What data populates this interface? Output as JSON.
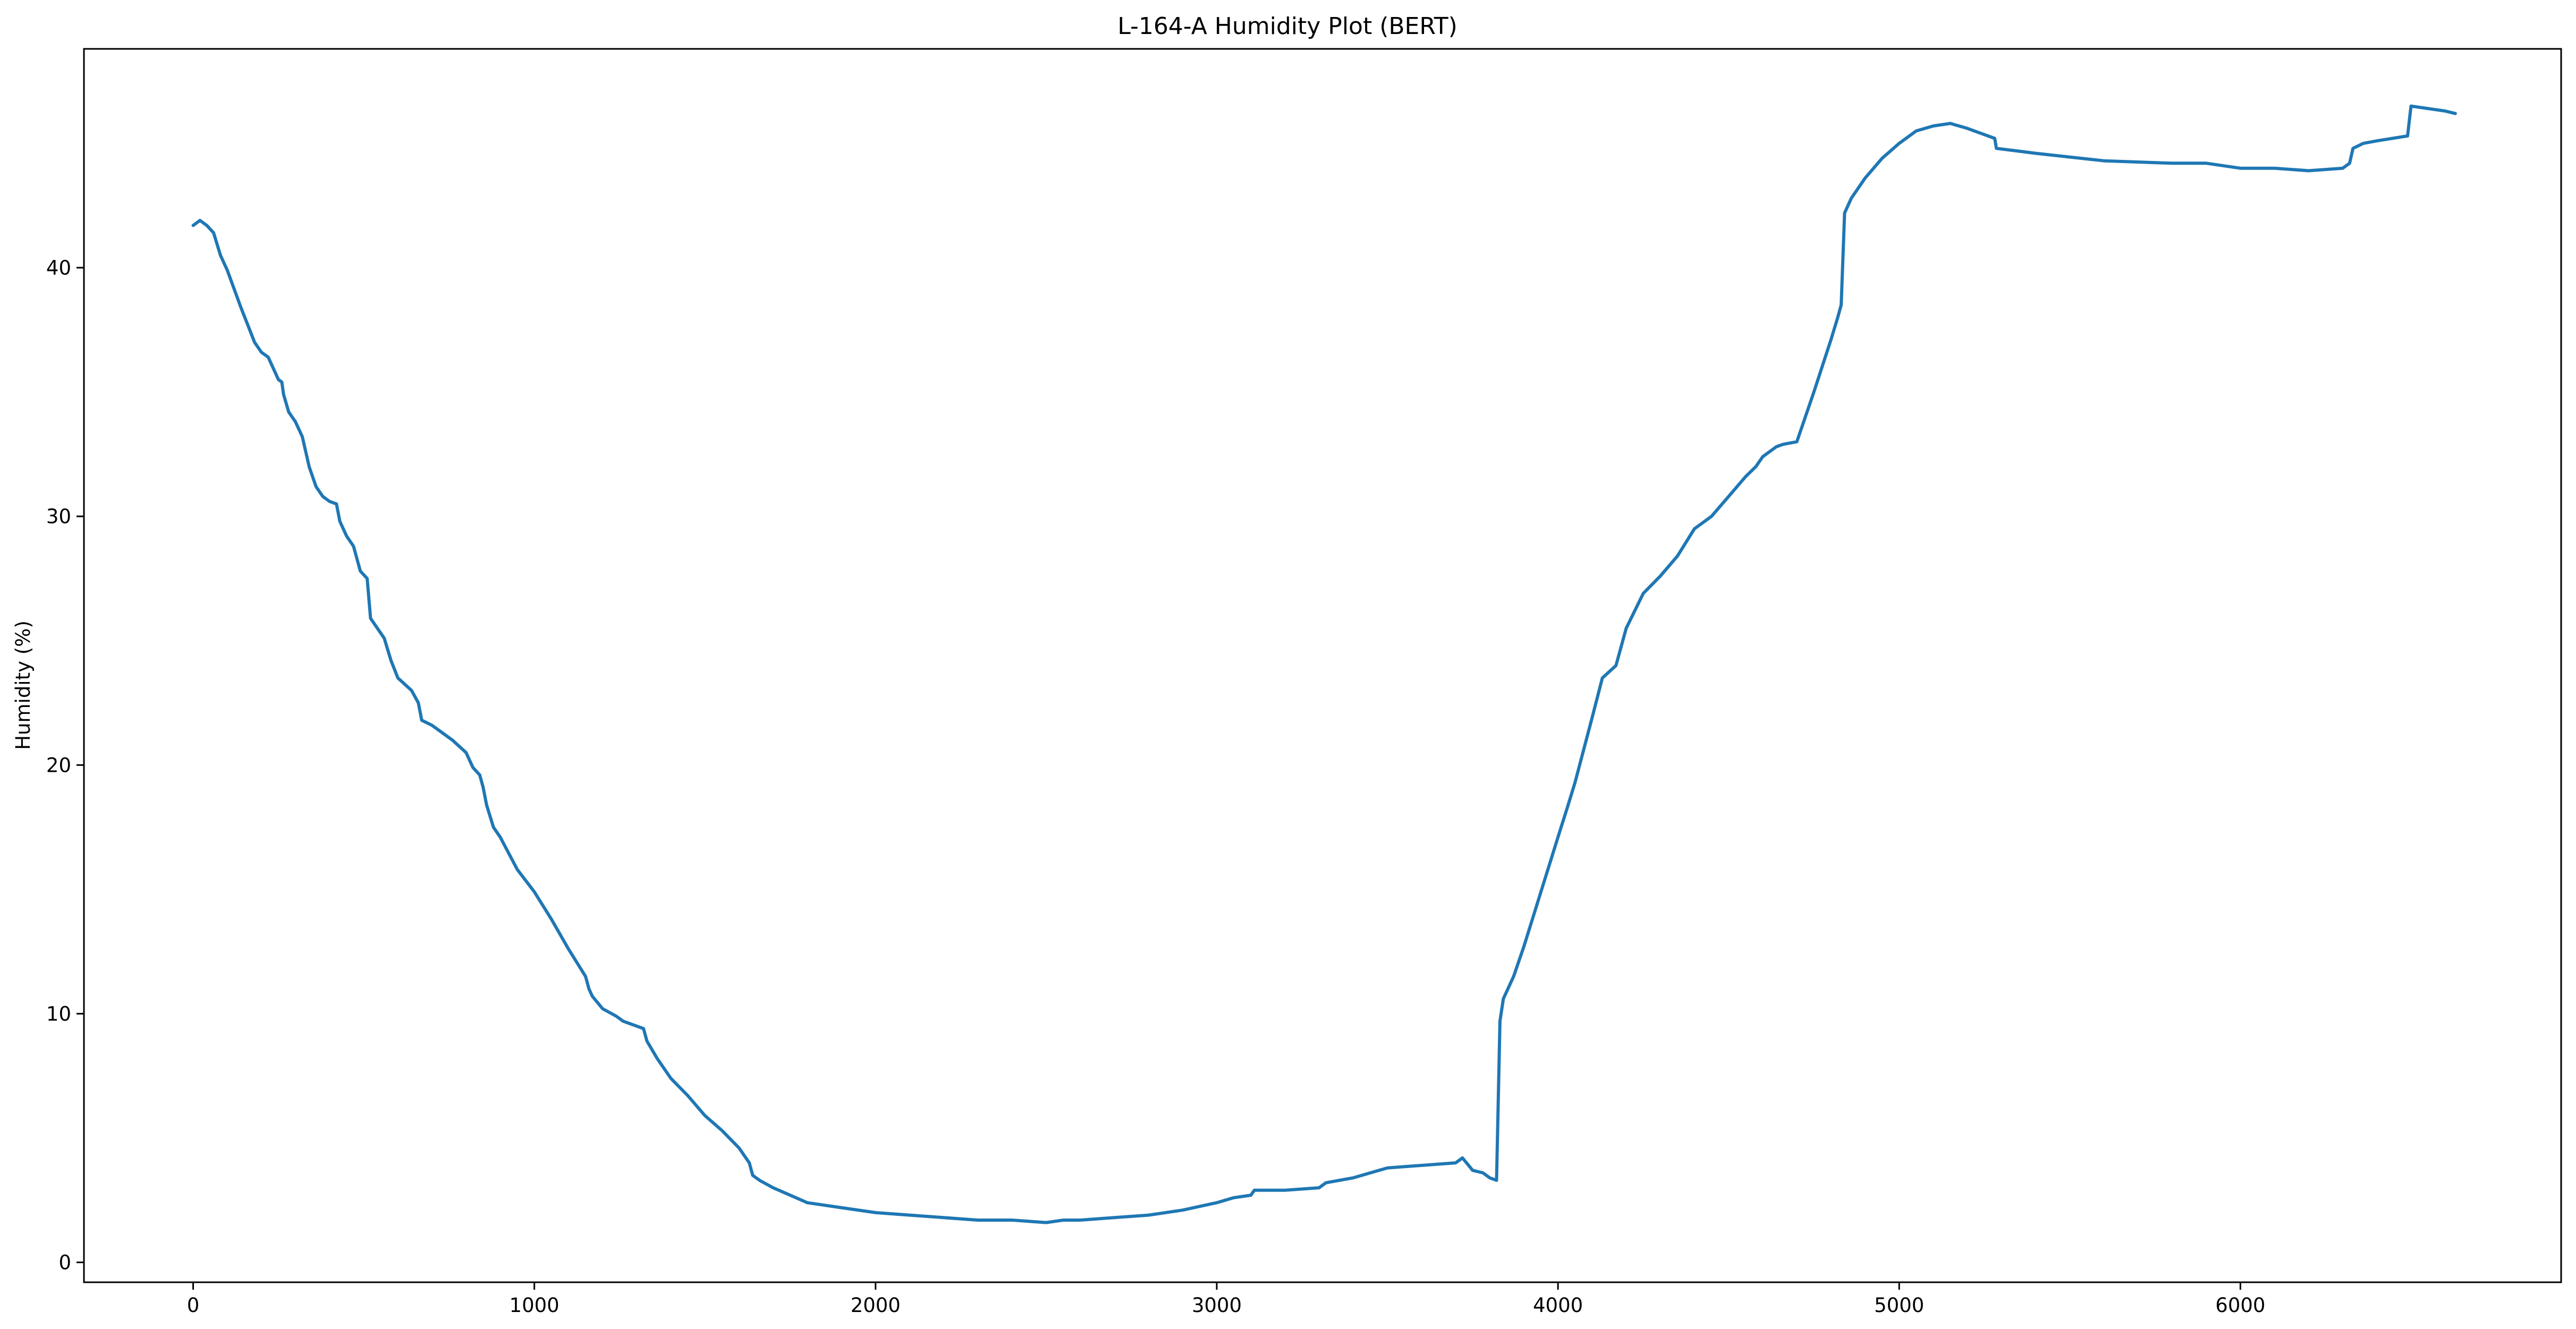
{
  "chart_data": {
    "type": "line",
    "title": "L-164-A Humidity Plot (BERT)",
    "xlabel": "",
    "ylabel": "Humidity (%)",
    "xlim": [
      -320,
      6940
    ],
    "ylim": [
      -0.8,
      48.8
    ],
    "xticks": [
      0,
      1000,
      2000,
      3000,
      4000,
      5000,
      6000
    ],
    "yticks": [
      0,
      10,
      20,
      30,
      40
    ],
    "grid": false,
    "legend": "none",
    "series": [
      {
        "color": "#1f77b4",
        "x": [
          0,
          20,
          40,
          60,
          80,
          100,
          140,
          180,
          200,
          220,
          250,
          260,
          265,
          280,
          300,
          320,
          340,
          360,
          380,
          400,
          420,
          430,
          450,
          470,
          490,
          510,
          520,
          530,
          560,
          580,
          600,
          640,
          660,
          670,
          700,
          760,
          800,
          820,
          840,
          850,
          860,
          880,
          900,
          950,
          1000,
          1050,
          1100,
          1150,
          1160,
          1170,
          1200,
          1240,
          1260,
          1300,
          1320,
          1330,
          1360,
          1400,
          1450,
          1500,
          1550,
          1600,
          1630,
          1640,
          1660,
          1700,
          1750,
          1800,
          1900,
          2000,
          2100,
          2200,
          2300,
          2400,
          2500,
          2550,
          2600,
          2700,
          2800,
          2900,
          3000,
          3050,
          3100,
          3110,
          3200,
          3300,
          3320,
          3400,
          3500,
          3600,
          3700,
          3720,
          3750,
          3780,
          3800,
          3820,
          3830,
          3840,
          3870,
          3900,
          3950,
          4000,
          4030,
          4050,
          4100,
          4130,
          4170,
          4200,
          4250,
          4300,
          4350,
          4400,
          4450,
          4500,
          4550,
          4580,
          4600,
          4640,
          4660,
          4700,
          4750,
          4800,
          4820,
          4830,
          4840,
          4860,
          4900,
          4950,
          5000,
          5050,
          5100,
          5150,
          5200,
          5280,
          5285,
          5400,
          5600,
          5800,
          5900,
          6000,
          6100,
          6200,
          6300,
          6320,
          6330,
          6360,
          6400,
          6490,
          6500,
          6550,
          6600,
          6630
        ],
        "y": [
          41.7,
          41.9,
          41.7,
          41.4,
          40.5,
          39.9,
          38.4,
          37.0,
          36.6,
          36.4,
          35.5,
          35.4,
          34.9,
          34.2,
          33.8,
          33.2,
          32.0,
          31.2,
          30.8,
          30.6,
          30.5,
          29.8,
          29.2,
          28.8,
          27.8,
          27.5,
          25.9,
          25.7,
          25.1,
          24.2,
          23.5,
          23.0,
          22.5,
          21.8,
          21.6,
          21.0,
          20.5,
          19.9,
          19.6,
          19.1,
          18.4,
          17.5,
          17.1,
          15.8,
          14.9,
          13.8,
          12.6,
          11.5,
          11.0,
          10.7,
          10.2,
          9.9,
          9.7,
          9.5,
          9.4,
          8.9,
          8.2,
          7.4,
          6.7,
          5.9,
          5.3,
          4.6,
          4.0,
          3.5,
          3.3,
          3.0,
          2.7,
          2.4,
          2.2,
          2.0,
          1.9,
          1.8,
          1.7,
          1.7,
          1.6,
          1.7,
          1.7,
          1.8,
          1.9,
          2.1,
          2.4,
          2.6,
          2.7,
          2.9,
          2.9,
          3.0,
          3.2,
          3.4,
          3.8,
          3.9,
          4.0,
          4.2,
          3.7,
          3.6,
          3.4,
          3.3,
          9.7,
          10.6,
          11.5,
          12.7,
          14.9,
          17.1,
          18.4,
          19.3,
          21.9,
          23.5,
          24.0,
          25.5,
          26.9,
          27.6,
          28.4,
          29.5,
          30.0,
          30.8,
          31.6,
          32.0,
          32.4,
          32.8,
          32.9,
          33.0,
          35.0,
          37.1,
          38.0,
          38.5,
          42.2,
          42.8,
          43.6,
          44.4,
          45.0,
          45.5,
          45.7,
          45.8,
          45.6,
          45.2,
          44.8,
          44.6,
          44.3,
          44.2,
          44.2,
          44.0,
          44.0,
          43.9,
          44.0,
          44.2,
          44.8,
          45.0,
          45.1,
          45.3,
          46.5,
          46.4,
          46.3,
          46.2
        ]
      }
    ]
  }
}
